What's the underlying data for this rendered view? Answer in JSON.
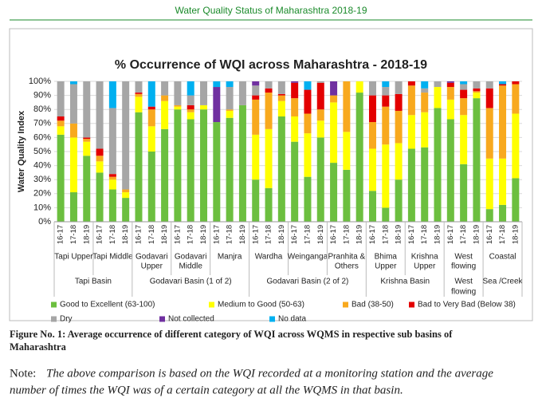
{
  "header": {
    "title": "Water Quality Status of Maharashtra 2018-19"
  },
  "chart_data": {
    "type": "stacked_bar",
    "title": "% Occurrence of WQI across Maharashtra - 2018-19",
    "y_label": "Water Quality Index",
    "ylim": [
      0,
      100
    ],
    "yticks": [
      {
        "value": 0,
        "label": "0%"
      },
      {
        "value": 10,
        "label": "10%"
      },
      {
        "value": 20,
        "label": "20%"
      },
      {
        "value": 30,
        "label": "30%"
      },
      {
        "value": 40,
        "label": "40%"
      },
      {
        "value": 50,
        "label": "50%"
      },
      {
        "value": 60,
        "label": "60%"
      },
      {
        "value": 70,
        "label": "70%"
      },
      {
        "value": 80,
        "label": "80%"
      },
      {
        "value": 90,
        "label": "90%"
      },
      {
        "value": 100,
        "label": "100%"
      }
    ],
    "grid": true,
    "basins": [
      {
        "label": [
          "Tapi Basin"
        ],
        "sub_basins": [
          {
            "label": [
              "Tapi Upper"
            ],
            "years": [
              "16-17",
              "17-18",
              "18-19"
            ]
          },
          {
            "label": [
              "Tapi Middle"
            ],
            "years": [
              "16-17",
              "17-18",
              "18-19"
            ]
          }
        ]
      },
      {
        "label": [
          "Godavari Basin (1 of 2)"
        ],
        "sub_basins": [
          {
            "label": [
              "Godavari",
              "Upper"
            ],
            "years": [
              "16-17",
              "17-18",
              "18-19"
            ]
          },
          {
            "label": [
              "Godavari",
              "Middle"
            ],
            "years": [
              "16-17",
              "17-18",
              "18-19"
            ]
          },
          {
            "label": [
              "Manjra"
            ],
            "years": [
              "16-17",
              "17-18",
              "18-19"
            ]
          }
        ]
      },
      {
        "label": [
          "Godavari Basin (2 of 2)"
        ],
        "sub_basins": [
          {
            "label": [
              "Wardha"
            ],
            "years": [
              "16-17",
              "17-18",
              "18-19"
            ]
          },
          {
            "label": [
              "Weinganga"
            ],
            "years": [
              "16-17",
              "17-18",
              "18-19"
            ]
          },
          {
            "label": [
              "Pranhita &",
              "Others"
            ],
            "years": [
              "16-17",
              "17-18",
              "18-19"
            ]
          }
        ]
      },
      {
        "label": [
          "Krishna Basin"
        ],
        "sub_basins": [
          {
            "label": [
              "Bhima",
              "Upper"
            ],
            "years": [
              "16-17",
              "17-18",
              "18-19"
            ]
          },
          {
            "label": [
              "Krishna",
              "Upper"
            ],
            "years": [
              "16-17",
              "17-18",
              "18-19"
            ]
          }
        ]
      },
      {
        "label": [
          "West",
          "flowing"
        ],
        "sub_basins": [
          {
            "label": [
              "West",
              "flowing"
            ],
            "years": [
              "16-17",
              "17-18",
              "18-19"
            ]
          }
        ]
      },
      {
        "label": [
          "Sea /Creek"
        ],
        "sub_basins": [
          {
            "label": [
              "Coastal"
            ],
            "years": [
              "16-17",
              "17-18",
              "18-19"
            ]
          }
        ]
      }
    ],
    "series": [
      {
        "name": "Good to Excellent (63-100)",
        "color": "#6cbf3f",
        "values": [
          62,
          21,
          47,
          35,
          23,
          17,
          78,
          50,
          66,
          80,
          73,
          80,
          71,
          74,
          83,
          30,
          24,
          75,
          57,
          32,
          60,
          42,
          37,
          92,
          22,
          10,
          30,
          52,
          53,
          81,
          73,
          41,
          88,
          9,
          12,
          31
        ]
      },
      {
        "name": "Medium to Good (50-63)",
        "color": "#ffff00",
        "values": [
          6,
          39,
          10,
          8,
          7,
          4,
          11,
          18,
          20,
          2,
          5,
          3,
          0,
          5,
          0,
          32,
          42,
          11,
          18,
          31,
          12,
          43,
          27,
          8,
          30,
          45,
          26,
          24,
          25,
          15,
          14,
          35,
          4,
          36,
          33,
          46
        ]
      },
      {
        "name": "Bad (38-50)",
        "color": "#f8a91e",
        "values": [
          4,
          10,
          2,
          4,
          2,
          2,
          2,
          12,
          4,
          1,
          2,
          0,
          0,
          1,
          0,
          25,
          26,
          4,
          13,
          14,
          8,
          5,
          36,
          0,
          19,
          27,
          23,
          21,
          14,
          0,
          9,
          12,
          1,
          36,
          52,
          21
        ]
      },
      {
        "name": "Bad to Very Bad (Below 38)",
        "color": "#e30000",
        "values": [
          3,
          0,
          1,
          5,
          2,
          0,
          1,
          2,
          0,
          0,
          3,
          0,
          0,
          0,
          0,
          3,
          3,
          1,
          11,
          17,
          19,
          0,
          0,
          0,
          19,
          8,
          12,
          3,
          0,
          0,
          3,
          6,
          2,
          14,
          1,
          2
        ]
      },
      {
        "name": "Dry",
        "color": "#a6a6a6",
        "values": [
          25,
          28,
          40,
          48,
          47,
          77,
          8,
          0,
          10,
          17,
          7,
          17,
          0,
          16,
          17,
          7,
          5,
          9,
          0,
          0,
          1,
          0,
          0,
          0,
          10,
          6,
          9,
          0,
          3,
          4,
          0,
          4,
          5,
          5,
          0,
          0
        ]
      },
      {
        "name": "Not collected",
        "color": "#7030a0",
        "values": [
          0,
          0,
          0,
          0,
          0,
          0,
          0,
          0,
          0,
          0,
          0,
          0,
          25,
          0,
          0,
          3,
          0,
          0,
          1,
          0,
          0,
          10,
          0,
          0,
          0,
          0,
          0,
          0,
          0,
          0,
          1,
          0,
          0,
          0,
          0,
          0
        ]
      },
      {
        "name": "No data",
        "color": "#00b0f0",
        "values": [
          0,
          2,
          0,
          0,
          19,
          0,
          0,
          18,
          0,
          0,
          10,
          0,
          4,
          4,
          0,
          0,
          0,
          0,
          0,
          6,
          0,
          0,
          0,
          0,
          0,
          4,
          0,
          0,
          5,
          0,
          0,
          2,
          0,
          0,
          2,
          0
        ]
      }
    ]
  },
  "caption": {
    "lines": [
      "Figure No. 1: Average occurrence of different category of WQI across WQMS in respective sub basins of",
      "Maharashtra"
    ]
  },
  "note": {
    "label": "Note:",
    "lines": [
      "The above comparison is based on the WQI recorded at a monitoring station and the average",
      "number of times the WQI was of a certain category at all the WQMS in that basin."
    ]
  }
}
